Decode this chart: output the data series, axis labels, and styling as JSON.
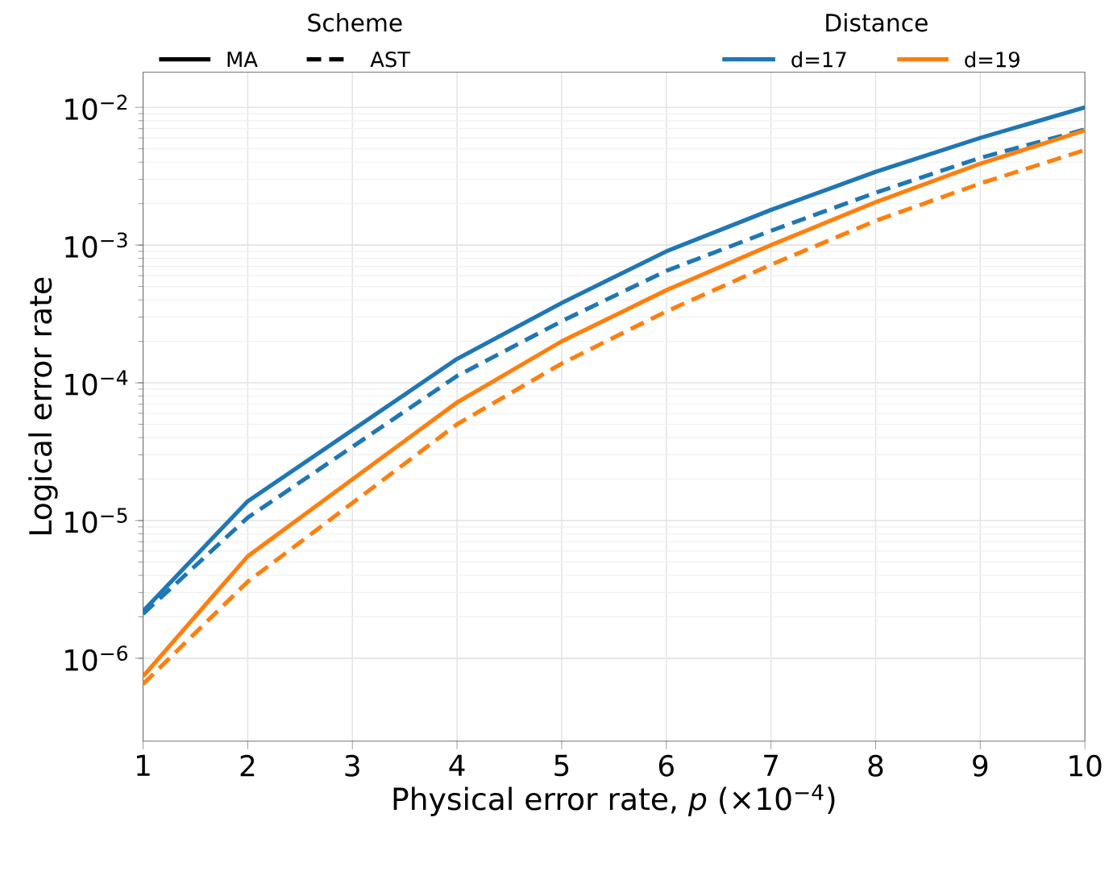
{
  "chart_data": {
    "type": "line",
    "xlabel": "Physical error rate, *p* (×10$^{−4}$)",
    "ylabel": "Logical error rate",
    "x": [
      1,
      2,
      4,
      5,
      6,
      7,
      8,
      9,
      10
    ],
    "series": [
      {
        "color": "#1f77b4",
        "line_style": "solid",
        "values": [
          2.2e-06,
          1.38e-05,
          0.000149,
          0.00038,
          0.0009,
          0.0018,
          0.0034,
          0.006,
          0.01
        ]
      },
      {
        "color": "#1f77b4",
        "line_style": "dashed",
        "values": [
          2.1e-06,
          1.05e-05,
          0.000112,
          0.00028,
          0.00065,
          0.00127,
          0.0024,
          0.0043,
          0.0069
        ]
      },
      {
        "color": "#ff7f0e",
        "line_style": "solid",
        "values": [
          7.4e-07,
          5.5e-06,
          7.2e-05,
          0.0002,
          0.00047,
          0.001,
          0.00205,
          0.0039,
          0.0068
        ]
      },
      {
        "color": "#ff7f0e",
        "line_style": "dashed",
        "values": [
          6.5e-07,
          3.6e-06,
          5e-05,
          0.000138,
          0.00033,
          0.00072,
          0.0015,
          0.0028,
          0.0049
        ]
      }
    ],
    "annotations": [
      "Scheme",
      "MA",
      "AST",
      "Distance",
      "d=17",
      "d=19"
    ],
    "log": "y",
    "grid": true,
    "xlim": [
      1,
      10
    ],
    "xticks": [
      1,
      2,
      3,
      4,
      5,
      6,
      7,
      8,
      9,
      10
    ],
    "ylim": [
      2.5e-07,
      0.018
    ],
    "yticks": [
      {
        "value": 1e-06,
        "label": "10$^{−6}$"
      },
      {
        "value": 1e-05,
        "label": "10$^{−5}$"
      },
      {
        "value": 0.0001,
        "label": "10$^{−4}$"
      },
      {
        "value": 0.001,
        "label": "10$^{−3}$"
      },
      {
        "value": 0.01,
        "label": "10$^{−2}$"
      }
    ]
  }
}
